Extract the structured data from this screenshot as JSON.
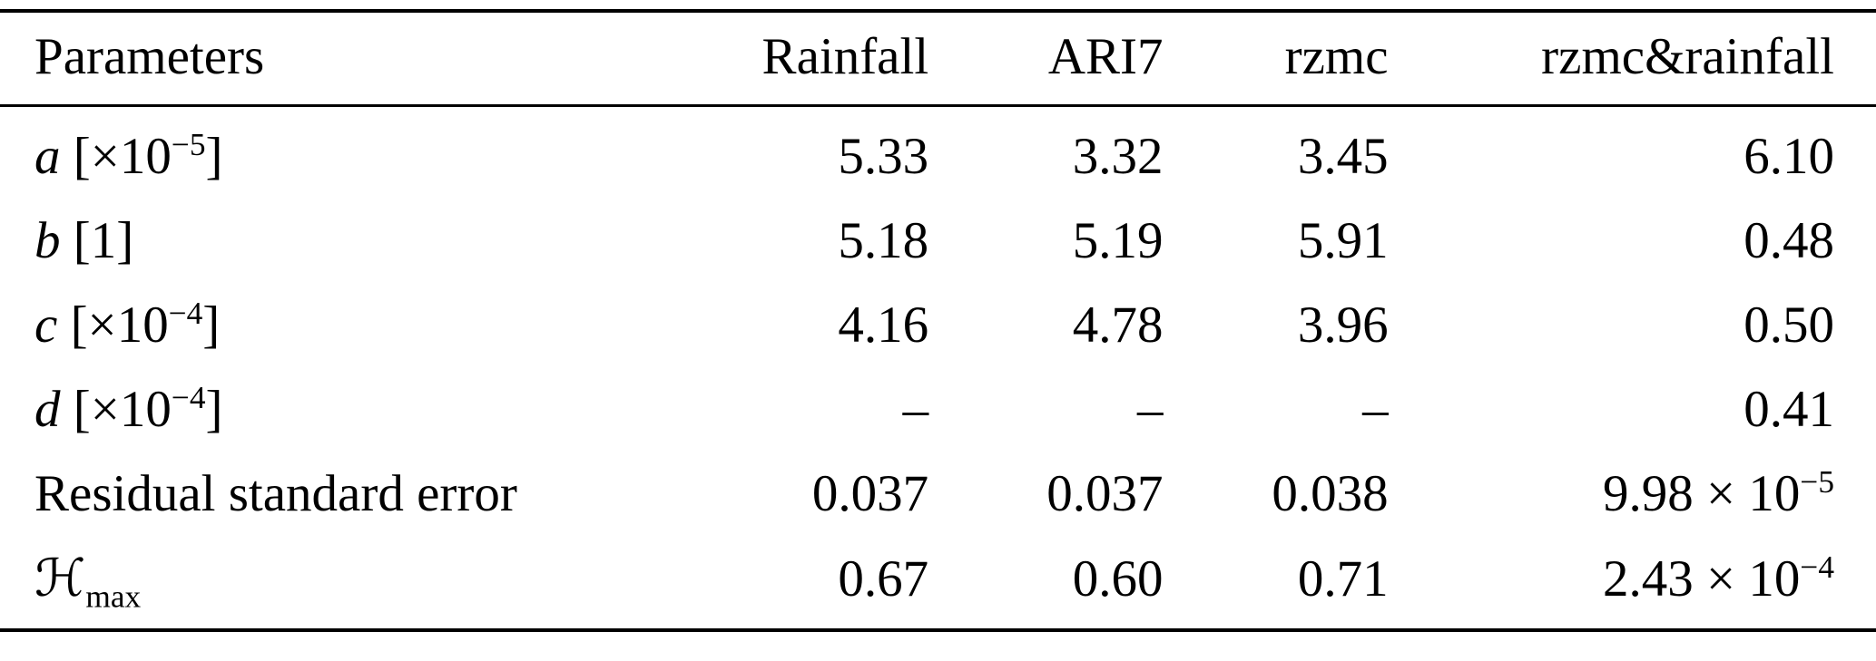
{
  "table": {
    "columns": [
      "Parameters",
      "Rainfall",
      "ARI7",
      "rzmc",
      "rzmc&rainfall"
    ],
    "rows": [
      {
        "label": [
          {
            "t": "a",
            "i": true
          },
          {
            "t": " [×10"
          },
          {
            "t": "−5",
            "sup": true
          },
          {
            "t": "]"
          }
        ],
        "values": [
          "5.33",
          "3.32",
          "3.45",
          "6.10"
        ]
      },
      {
        "label": [
          {
            "t": "b",
            "i": true
          },
          {
            "t": " [1]"
          }
        ],
        "values": [
          "5.18",
          "5.19",
          "5.91",
          "0.48"
        ]
      },
      {
        "label": [
          {
            "t": "c",
            "i": true
          },
          {
            "t": " [×10"
          },
          {
            "t": "−4",
            "sup": true
          },
          {
            "t": "]"
          }
        ],
        "values": [
          "4.16",
          "4.78",
          "3.96",
          "0.50"
        ]
      },
      {
        "label": [
          {
            "t": "d",
            "i": true
          },
          {
            "t": " [×10"
          },
          {
            "t": "−4",
            "sup": true
          },
          {
            "t": "]"
          }
        ],
        "values": [
          "–",
          "–",
          "–",
          "0.41"
        ]
      },
      {
        "label": [
          {
            "t": "Residual standard error"
          }
        ],
        "values": [
          "0.037",
          "0.037",
          "0.038",
          [
            {
              "t": "9.98 × 10"
            },
            {
              "t": "−5",
              "sup": true
            }
          ]
        ]
      },
      {
        "label": [
          {
            "t": "ℋ"
          },
          {
            "t": "max",
            "sub": true
          }
        ],
        "values": [
          "0.67",
          "0.60",
          "0.71",
          [
            {
              "t": "2.43 × 10"
            },
            {
              "t": "−4",
              "sup": true
            }
          ]
        ]
      }
    ]
  }
}
